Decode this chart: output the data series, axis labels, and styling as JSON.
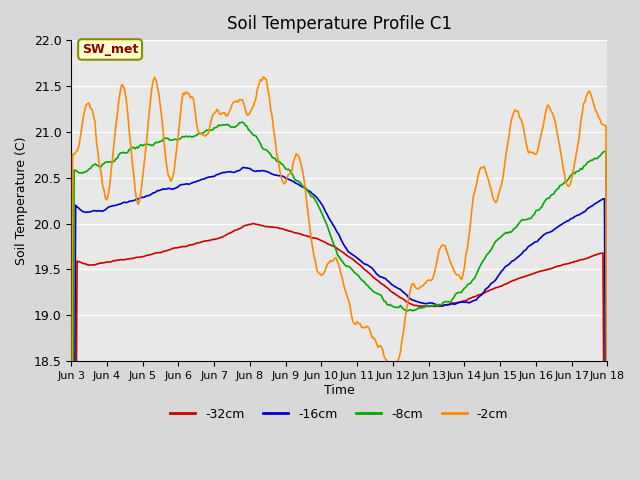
{
  "title": "Soil Temperature Profile C1",
  "xlabel": "Time",
  "ylabel": "Soil Temperature (C)",
  "ylim": [
    18.5,
    22.0
  ],
  "xlim": [
    0,
    360
  ],
  "background_color": "#e8e8e8",
  "plot_bg_color": "#e0e0e0",
  "grid_color": "#ffffff",
  "annotation_text": "SW_met",
  "annotation_bg": "#ffffcc",
  "annotation_edge": "#8b8b00",
  "annotation_text_color": "#8b0000",
  "series": {
    "-32cm": {
      "color": "#cc0000",
      "linewidth": 1.2
    },
    "-16cm": {
      "color": "#0000cc",
      "linewidth": 1.2
    },
    "-8cm": {
      "color": "#00aa00",
      "linewidth": 1.2
    },
    "-2cm": {
      "color": "#ff8800",
      "linewidth": 1.2
    }
  },
  "x_tick_labels": [
    "Jun 3",
    "Jun 4",
    "Jun 5",
    "Jun 6",
    "Jun 7",
    "Jun 8",
    "Jun 9",
    "Jun 10",
    "Jun 11",
    "Jun 12",
    "Jun 13",
    "Jun 14",
    "Jun 15",
    "Jun 16",
    "Jun 17",
    "Jun 18"
  ],
  "x_tick_positions": [
    0,
    24,
    48,
    72,
    96,
    120,
    144,
    168,
    192,
    216,
    240,
    264,
    288,
    312,
    336,
    360
  ],
  "y_ticks": [
    18.5,
    19.0,
    19.5,
    20.0,
    20.5,
    21.0,
    21.5,
    22.0
  ]
}
